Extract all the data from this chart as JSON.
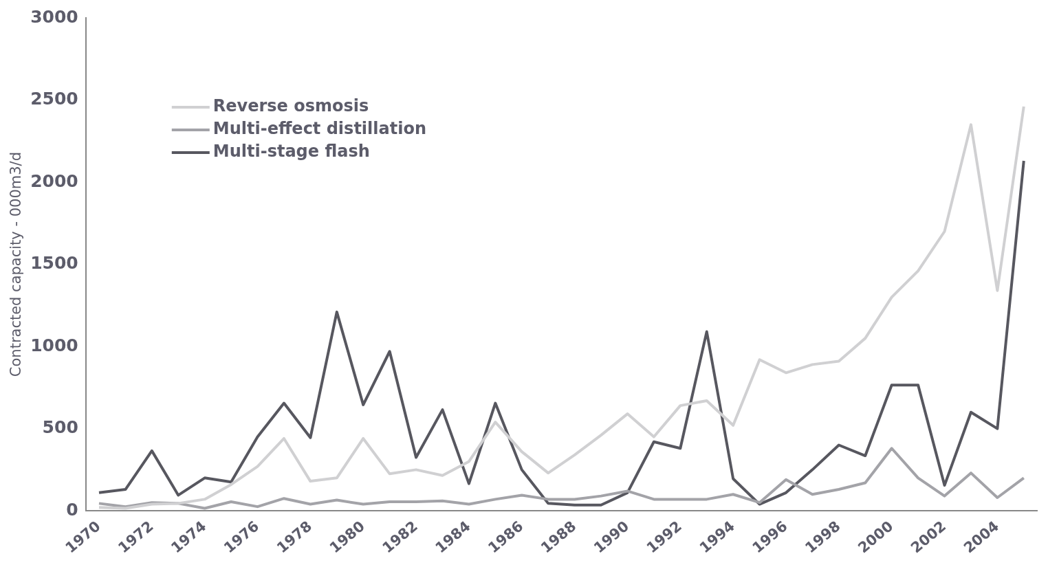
{
  "chart_data": {
    "type": "line",
    "ylabel": "Contracted capacity - 000m3/d",
    "categories": [
      "1970",
      null,
      "1972",
      null,
      "1974",
      null,
      "1976",
      null,
      "1978",
      null,
      "1980",
      null,
      "1982",
      null,
      "1984",
      null,
      "1986",
      null,
      "1988",
      null,
      "1990",
      null,
      "1992",
      null,
      "1994",
      null,
      "1996",
      null,
      "1998",
      null,
      "2000",
      null,
      "2002",
      null,
      "2004",
      null
    ],
    "series": [
      {
        "name": "Reverse osmosis",
        "color": "#d0d0d2",
        "values": [
          20,
          15,
          40,
          45,
          70,
          160,
          270,
          440,
          180,
          200,
          440,
          225,
          250,
          215,
          300,
          540,
          360,
          230,
          340,
          460,
          590,
          450,
          640,
          670,
          520,
          920,
          840,
          890,
          910,
          1050,
          1300,
          1460,
          1700,
          2350,
          1340,
          2460
        ]
      },
      {
        "name": "Multi-effect distillation",
        "color": "#a3a3a8",
        "values": [
          45,
          25,
          50,
          45,
          15,
          55,
          25,
          75,
          40,
          65,
          40,
          55,
          55,
          60,
          40,
          70,
          95,
          70,
          70,
          90,
          120,
          70,
          70,
          70,
          100,
          50,
          190,
          100,
          130,
          170,
          380,
          200,
          90,
          230,
          80,
          200
        ]
      },
      {
        "name": "Multi-stage flash",
        "color": "#57575f",
        "values": [
          110,
          130,
          365,
          95,
          200,
          175,
          450,
          655,
          445,
          1210,
          645,
          970,
          325,
          615,
          165,
          655,
          250,
          45,
          35,
          35,
          110,
          420,
          380,
          1090,
          195,
          40,
          110,
          250,
          400,
          335,
          765,
          765,
          155,
          600,
          500,
          2130
        ]
      }
    ],
    "ylim": [
      0,
      3000
    ],
    "yticks": [
      0,
      500,
      1000,
      1500,
      2000,
      2500,
      3000
    ],
    "legend": "top left",
    "marker": "none",
    "line_style": "solid"
  }
}
